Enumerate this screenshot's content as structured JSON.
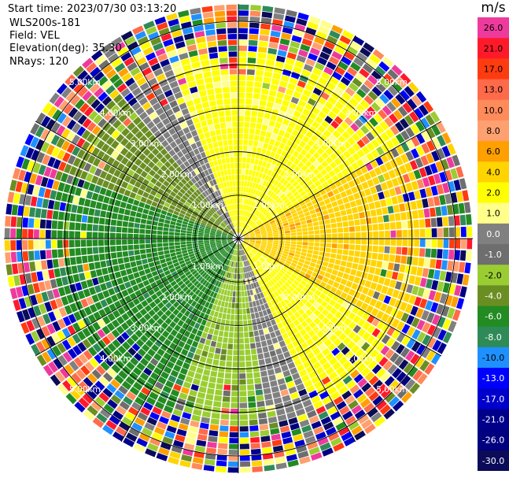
{
  "header": {
    "start_time": "Start time: 2023/07/30 03:13:20",
    "instrument": "WLS200s-181",
    "field": "Field: VEL",
    "elevation": "Elevation(deg): 35.30",
    "nrays": "NRays: 120"
  },
  "colorbar": {
    "title": "m/s",
    "levels": [
      {
        "label": "26.0",
        "color": "#ee3a9d"
      },
      {
        "label": "21.0",
        "color": "#ff1a2a"
      },
      {
        "label": "17.0",
        "color": "#ff3b10"
      },
      {
        "label": "13.0",
        "color": "#ff6a4a"
      },
      {
        "label": "10.0",
        "color": "#ff8a5a"
      },
      {
        "label": "8.0",
        "color": "#ffa070"
      },
      {
        "label": "6.0",
        "color": "#ff9f00"
      },
      {
        "label": "4.0",
        "color": "#ffd400"
      },
      {
        "label": "2.0",
        "color": "#ffff00"
      },
      {
        "label": "1.0",
        "color": "#ffff8a"
      },
      {
        "label": "0.0",
        "color": "#808080"
      },
      {
        "label": "-1.0",
        "color": "#6e6e6e"
      },
      {
        "label": "-2.0",
        "color": "#9acd32"
      },
      {
        "label": "-4.0",
        "color": "#6b8e23"
      },
      {
        "label": "-6.0",
        "color": "#228b22"
      },
      {
        "label": "-8.0",
        "color": "#2e8b57"
      },
      {
        "label": "-10.0",
        "color": "#1e90ff"
      },
      {
        "label": "-13.0",
        "color": "#0000ff"
      },
      {
        "label": "-17.0",
        "color": "#0000cd"
      },
      {
        "label": "-21.0",
        "color": "#00008b"
      },
      {
        "label": "-26.0",
        "color": "#000080"
      },
      {
        "label": "-30.0",
        "color": "#0b0b5a"
      }
    ]
  },
  "chart_data": {
    "type": "heatmap",
    "title": "",
    "field": "VEL",
    "units": "m/s",
    "nrays": 120,
    "elevation_deg": 35.3,
    "range_rings_km": [
      1.0,
      2.0,
      3.0,
      4.0,
      5.0
    ],
    "ring_labels": [
      "1.00km",
      "2.00km",
      "3.00km",
      "4.00km",
      "5.00km"
    ],
    "spokes_deg": [
      0,
      30,
      60,
      90,
      120,
      150,
      180,
      210,
      240,
      270,
      300,
      330
    ],
    "max_range_km": 5.4,
    "sectors": [
      {
        "azimuth_from_deg": 340,
        "azimuth_to_deg": 60,
        "value_ms": 2.0
      },
      {
        "azimuth_from_deg": 60,
        "azimuth_to_deg": 120,
        "value_ms": 5.0
      },
      {
        "azimuth_from_deg": 120,
        "azimuth_to_deg": 155,
        "value_ms": 2.0
      },
      {
        "azimuth_from_deg": 155,
        "azimuth_to_deg": 170,
        "value_ms": 0.0
      },
      {
        "azimuth_from_deg": 170,
        "azimuth_to_deg": 200,
        "value_ms": -2.0
      },
      {
        "azimuth_from_deg": 200,
        "azimuth_to_deg": 290,
        "value_ms": -6.0
      },
      {
        "azimuth_from_deg": 290,
        "azimuth_to_deg": 320,
        "value_ms": -3.0
      },
      {
        "azimuth_from_deg": 320,
        "azimuth_to_deg": 340,
        "value_ms": 0.0
      }
    ],
    "noise_beyond_km": 4.2
  }
}
